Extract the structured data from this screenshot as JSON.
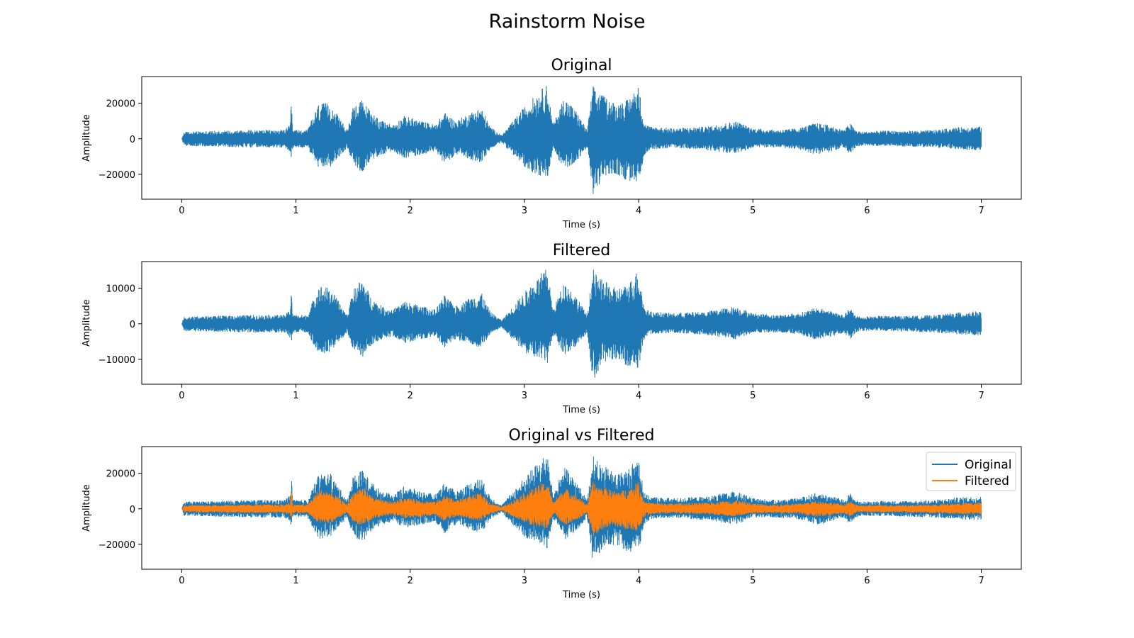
{
  "figure": {
    "title": "Rainstorm Noise"
  },
  "colors": {
    "original": "#1f77b4",
    "filtered": "#ff7f0e",
    "axis": "#000000",
    "background": "#ffffff"
  },
  "chart_data": [
    {
      "type": "line",
      "title": "Original",
      "xlabel": "Time (s)",
      "ylabel": "Amplitude",
      "xlim": [
        -0.35,
        7.35
      ],
      "ylim": [
        -34000,
        35000
      ],
      "xticks": [
        0,
        1,
        2,
        3,
        4,
        5,
        6,
        7
      ],
      "yticks": [
        -20000,
        0,
        20000
      ],
      "ytick_labels": [
        "−20000",
        "0",
        "20000"
      ],
      "grid": false,
      "series": [
        {
          "color": "#1f77b4",
          "envelope": {
            "x": [
              0.0,
              0.02,
              0.3,
              0.6,
              0.9,
              0.95,
              0.96,
              0.97,
              1.1,
              1.2,
              1.3,
              1.38,
              1.45,
              1.5,
              1.58,
              1.65,
              1.75,
              1.85,
              1.95,
              2.1,
              2.22,
              2.3,
              2.4,
              2.5,
              2.62,
              2.7,
              2.8,
              2.9,
              3.0,
              3.1,
              3.2,
              3.25,
              3.35,
              3.45,
              3.55,
              3.6,
              3.65,
              3.7,
              3.8,
              3.9,
              4.0,
              4.05,
              4.1,
              4.3,
              4.6,
              4.85,
              5.0,
              5.2,
              5.4,
              5.55,
              5.65,
              5.8,
              5.85,
              5.9,
              5.95,
              6.1,
              6.4,
              6.6,
              6.8,
              6.95,
              7.0
            ],
            "max": [
              0,
              4000,
              4500,
              5000,
              5000,
              8000,
              23500,
              5000,
              5000,
              20000,
              20000,
              12000,
              5000,
              19000,
              22000,
              16000,
              10000,
              8000,
              13000,
              10000,
              8000,
              15000,
              10000,
              14000,
              18000,
              7000,
              2000,
              10000,
              18000,
              25000,
              31000,
              8000,
              24000,
              16000,
              5000,
              30000,
              26000,
              24000,
              20000,
              22000,
              30000,
              9000,
              7000,
              6000,
              7000,
              10000,
              6000,
              5000,
              6000,
              9000,
              8000,
              5000,
              9000,
              5000,
              4000,
              4500,
              4500,
              5000,
              6500,
              7000,
              7000
            ],
            "min": [
              0,
              -4000,
              -4500,
              -5000,
              -5000,
              -8000,
              -10500,
              -5000,
              -5000,
              -17000,
              -16000,
              -10000,
              -5000,
              -15000,
              -19000,
              -13000,
              -9000,
              -7000,
              -11000,
              -9000,
              -7000,
              -14000,
              -9000,
              -11000,
              -14000,
              -6000,
              -2000,
              -9000,
              -16000,
              -20000,
              -23000,
              -6000,
              -18000,
              -13000,
              -5000,
              -31500,
              -26000,
              -22000,
              -20000,
              -24000,
              -25000,
              -9000,
              -6000,
              -5000,
              -6500,
              -9000,
              -5000,
              -5000,
              -6000,
              -9000,
              -8000,
              -5000,
              -9000,
              -5000,
              -4000,
              -4000,
              -4500,
              -5000,
              -6000,
              -6500,
              -6500
            ]
          }
        }
      ]
    },
    {
      "type": "line",
      "title": "Filtered",
      "xlabel": "Time (s)",
      "ylabel": "Amplitude",
      "xlim": [
        -0.35,
        7.35
      ],
      "ylim": [
        -17000,
        17500
      ],
      "xticks": [
        0,
        1,
        2,
        3,
        4,
        5,
        6,
        7
      ],
      "yticks": [
        -10000,
        0,
        10000
      ],
      "ytick_labels": [
        "−10000",
        "0",
        "10000"
      ],
      "grid": false,
      "series": [
        {
          "color": "#1f77b4",
          "envelope": {
            "x": [
              0.0,
              0.02,
              0.3,
              0.6,
              0.9,
              0.95,
              0.96,
              0.97,
              1.1,
              1.2,
              1.3,
              1.38,
              1.45,
              1.5,
              1.58,
              1.65,
              1.75,
              1.85,
              1.95,
              2.1,
              2.22,
              2.3,
              2.4,
              2.5,
              2.62,
              2.7,
              2.8,
              2.9,
              3.0,
              3.1,
              3.2,
              3.25,
              3.35,
              3.45,
              3.55,
              3.6,
              3.65,
              3.7,
              3.8,
              3.9,
              4.0,
              4.05,
              4.1,
              4.3,
              4.6,
              4.85,
              5.0,
              5.2,
              5.4,
              5.55,
              5.65,
              5.8,
              5.85,
              5.9,
              5.95,
              6.1,
              6.4,
              6.6,
              6.8,
              6.95,
              7.0
            ],
            "max": [
              0,
              2000,
              2250,
              2500,
              2500,
              4000,
              12500,
              2500,
              2500,
              11000,
              10000,
              6000,
              2500,
              9500,
              13000,
              8000,
              5000,
              4000,
              6500,
              5000,
              4000,
              8000,
              5000,
              7000,
              9000,
              3500,
              1000,
              5000,
              9000,
              12500,
              16000,
              4000,
              12000,
              8000,
              2500,
              15500,
              13000,
              12000,
              10000,
              11000,
              15500,
              4500,
              3500,
              3000,
              3500,
              5000,
              3000,
              2500,
              3000,
              4500,
              4000,
              2500,
              4500,
              2500,
              2000,
              2250,
              2250,
              2500,
              3250,
              3500,
              3500
            ],
            "min": [
              0,
              -2000,
              -2250,
              -2500,
              -2500,
              -4000,
              -5500,
              -2500,
              -2500,
              -8500,
              -8000,
              -5000,
              -2500,
              -7500,
              -9500,
              -6500,
              -4500,
              -3500,
              -5500,
              -4500,
              -3500,
              -7000,
              -4500,
              -5500,
              -7000,
              -3000,
              -1000,
              -4500,
              -8000,
              -10000,
              -11500,
              -3000,
              -9000,
              -6500,
              -2500,
              -16500,
              -13000,
              -11000,
              -10000,
              -12000,
              -13000,
              -4500,
              -3000,
              -2500,
              -3250,
              -4500,
              -2500,
              -2500,
              -3000,
              -4500,
              -4000,
              -2500,
              -4500,
              -2500,
              -2000,
              -2000,
              -2250,
              -2500,
              -3000,
              -3250,
              -3250
            ]
          }
        }
      ]
    },
    {
      "type": "line",
      "title": "Original vs Filtered",
      "xlabel": "Time (s)",
      "ylabel": "Amplitude",
      "xlim": [
        -0.35,
        7.35
      ],
      "ylim": [
        -34000,
        35000
      ],
      "xticks": [
        0,
        1,
        2,
        3,
        4,
        5,
        6,
        7
      ],
      "yticks": [
        -20000,
        0,
        20000
      ],
      "ytick_labels": [
        "−20000",
        "0",
        "20000"
      ],
      "grid": false,
      "legend": {
        "position": "top-right",
        "entries": [
          "Original",
          "Filtered"
        ]
      },
      "series": [
        {
          "name": "Original",
          "color": "#1f77b4",
          "envelope_ref": 0
        },
        {
          "name": "Filtered",
          "color": "#ff7f0e",
          "envelope_ref": 1
        }
      ]
    }
  ]
}
